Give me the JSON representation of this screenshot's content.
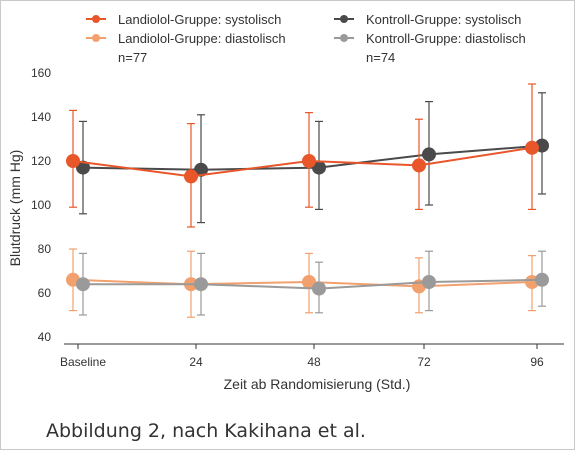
{
  "chart_data": {
    "type": "line",
    "xlabel": "Zeit ab Randomisierung (Std.)",
    "ylabel": "Blutdruck (mm Hg)",
    "categories": [
      "Baseline",
      "24",
      "48",
      "72",
      "96"
    ],
    "ylim": [
      40,
      160
    ],
    "yticks": [
      40,
      60,
      80,
      100,
      120,
      140,
      160
    ],
    "legend": {
      "entries": [
        "Landiolol-Gruppe: systolisch",
        "Landiolol-Gruppe: diastolisch",
        "Kontroll-Gruppe: systolisch",
        "Kontroll-Gruppe: diastolisch"
      ],
      "n_landiolol": "n=77",
      "n_kontroll": "n=74",
      "placement": "top"
    },
    "series": [
      {
        "name": "Landiolol-Gruppe: systolisch",
        "color": "#e8562a",
        "values": [
          120,
          113,
          120,
          118,
          126
        ],
        "err_low": [
          99,
          90,
          99,
          98,
          98
        ],
        "err_high": [
          143,
          137,
          142,
          139,
          155
        ]
      },
      {
        "name": "Kontroll-Gruppe: systolisch",
        "color": "#4a4a4a",
        "values": [
          117,
          116,
          117,
          123,
          127
        ],
        "err_low": [
          96,
          92,
          98,
          100,
          105
        ],
        "err_high": [
          138,
          141,
          138,
          147,
          151
        ]
      },
      {
        "name": "Landiolol-Gruppe: diastolisch",
        "color": "#f2a16e",
        "values": [
          66,
          64,
          65,
          63,
          65
        ],
        "err_low": [
          52,
          49,
          51,
          51,
          52
        ],
        "err_high": [
          80,
          79,
          78,
          76,
          77
        ]
      },
      {
        "name": "Kontroll-Gruppe: diastolisch",
        "color": "#9a9a9a",
        "values": [
          64,
          64,
          62,
          65,
          66
        ],
        "err_low": [
          50,
          50,
          51,
          52,
          54
        ],
        "err_high": [
          78,
          78,
          74,
          79,
          79
        ]
      }
    ],
    "grid": false
  },
  "caption": "Abbildung 2, nach Kakihana et al."
}
